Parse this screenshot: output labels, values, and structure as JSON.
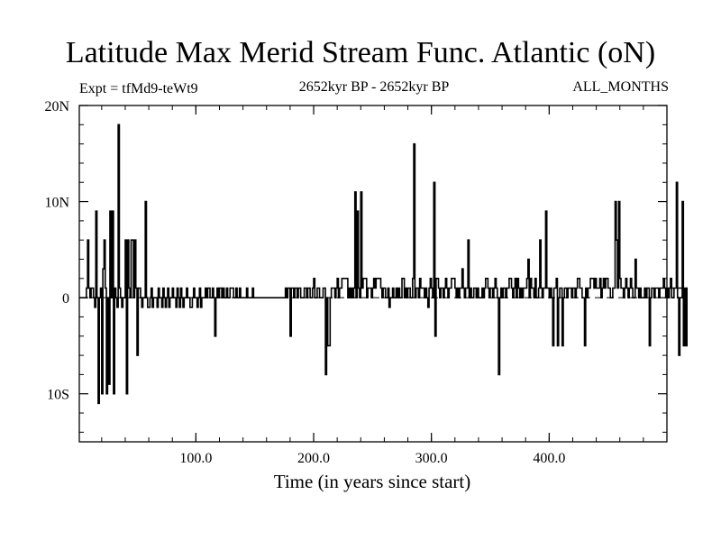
{
  "chart_data": {
    "type": "line",
    "title": "Latitude Max Merid Stream Func. Atlantic (oN)",
    "expt": "Expt = tfMd9-teWt9",
    "period": "2652kyr BP - 2652kyr BP",
    "months": "ALL_MONTHS",
    "xlabel": "Time (in years since start)",
    "ylabel": "",
    "xlim": [
      1,
      500
    ],
    "ylim": [
      -15,
      20
    ],
    "x_ticks": [
      {
        "value": 100,
        "label": "100.0"
      },
      {
        "value": 200,
        "label": "200.0"
      },
      {
        "value": 300,
        "label": "300.0"
      },
      {
        "value": 400,
        "label": "400.0"
      }
    ],
    "y_ticks": [
      {
        "value": 20,
        "label": "20N"
      },
      {
        "value": 10,
        "label": "10N"
      },
      {
        "value": 0,
        "label": "0"
      },
      {
        "value": -10,
        "label": "10S"
      }
    ],
    "reference_line": {
      "value": 0,
      "style": "dashed"
    },
    "grid": false,
    "series": [
      {
        "values": [
          0,
          0,
          0,
          0,
          0,
          0,
          1,
          6,
          1,
          0,
          1,
          1,
          0,
          -1,
          9,
          0,
          -11,
          0,
          1,
          -10,
          3,
          6,
          1,
          -10,
          0,
          -9,
          9,
          0,
          9,
          -10,
          1,
          0,
          -1,
          18,
          1,
          0,
          -1,
          0,
          0,
          6,
          -10,
          6,
          1,
          0,
          6,
          6,
          0,
          6,
          1,
          -6,
          1,
          1,
          0,
          -1,
          0,
          0,
          10,
          0,
          -1,
          -1,
          0,
          1,
          -1,
          0,
          0,
          0,
          -1,
          1,
          0,
          0,
          -1,
          1,
          0,
          -1,
          0,
          1,
          -1,
          0,
          0,
          1,
          0,
          0,
          -1,
          1,
          0,
          -1,
          1,
          0,
          -1,
          0,
          0,
          1,
          0,
          0,
          -1,
          -1,
          0,
          1,
          0,
          0,
          -1,
          0,
          1,
          -1,
          0,
          0,
          0,
          1,
          0,
          1,
          1,
          0,
          0,
          1,
          0,
          -4,
          0,
          1,
          0,
          1,
          1,
          0,
          1,
          0,
          0,
          1,
          0,
          0,
          1,
          1,
          1,
          0,
          0,
          1,
          0,
          0,
          1,
          0,
          0,
          0,
          0,
          0,
          1,
          0,
          0,
          0,
          0,
          1,
          0,
          0,
          0,
          0,
          0,
          0,
          0,
          0,
          0,
          0,
          0,
          0,
          0,
          0,
          0,
          0,
          0,
          0,
          0,
          0,
          0,
          0,
          0,
          0,
          0,
          0,
          0,
          1,
          0,
          1,
          1,
          -4,
          1,
          1,
          0,
          1,
          1,
          0,
          1,
          1,
          0,
          0,
          0,
          1,
          1,
          0,
          1,
          1,
          0,
          0,
          1,
          2,
          0,
          0,
          1,
          1,
          0,
          0,
          0,
          1,
          1,
          -8,
          0,
          -5,
          -5,
          0,
          1,
          1,
          1,
          0,
          1,
          2,
          0,
          1,
          1,
          2,
          2,
          2,
          2,
          2,
          0,
          1,
          0,
          1,
          0,
          1,
          11,
          0,
          9,
          1,
          0,
          11,
          1,
          2,
          2,
          2,
          0,
          1,
          1,
          1,
          0,
          1,
          2,
          1,
          2,
          2,
          2,
          2,
          1,
          0,
          1,
          1,
          0,
          0,
          1,
          -1,
          0,
          0,
          1,
          0,
          0,
          1,
          0,
          1,
          0,
          0,
          2,
          2,
          0,
          1,
          0,
          1,
          1,
          0,
          0,
          2,
          16,
          0,
          1,
          1,
          0,
          2,
          1,
          1,
          1,
          0,
          1,
          0,
          -1,
          1,
          2,
          1,
          0,
          12,
          -4,
          2,
          2,
          1,
          0,
          1,
          1,
          0,
          1,
          2,
          1,
          0,
          1,
          1,
          2,
          2,
          2,
          1,
          0,
          1,
          0,
          1,
          1,
          3,
          1,
          0,
          1,
          1,
          6,
          0,
          1,
          0,
          0,
          1,
          1,
          0,
          1,
          0,
          0,
          0,
          1,
          0,
          1,
          2,
          2,
          1,
          0,
          1,
          1,
          0,
          1,
          2,
          1,
          0,
          -8,
          0,
          1,
          0,
          1,
          1,
          0,
          1,
          1,
          2,
          2,
          1,
          0,
          1,
          2,
          0,
          2,
          1,
          0,
          1,
          0,
          1,
          1,
          1,
          2,
          4,
          0,
          2,
          1,
          1,
          0,
          2,
          0,
          0,
          1,
          6,
          1,
          0,
          1,
          1,
          9,
          1,
          1,
          0,
          1,
          0,
          -5,
          1,
          1,
          2,
          -5,
          0,
          1,
          1,
          -5,
          0,
          1,
          1,
          0,
          1,
          1,
          1,
          0,
          1,
          1,
          0,
          1,
          2,
          2,
          1,
          1,
          0,
          0,
          -5,
          1,
          0,
          1,
          1,
          2,
          2,
          2,
          1,
          2,
          1,
          1,
          1,
          2,
          0,
          1,
          2,
          1,
          2,
          2,
          1,
          1,
          0,
          0,
          1,
          1,
          10,
          6,
          1,
          10,
          2,
          1,
          1,
          0,
          1,
          2,
          1,
          0,
          1,
          2,
          1,
          0,
          0,
          4,
          1,
          1,
          0,
          1,
          0,
          0,
          0,
          1,
          0,
          1,
          1,
          -5,
          0,
          1,
          1,
          0,
          1,
          1,
          1,
          0,
          1,
          1,
          1,
          2,
          1,
          0,
          1,
          0,
          1,
          2,
          0,
          0,
          1,
          1,
          12,
          0,
          -6,
          0,
          0,
          10,
          -5,
          1,
          -5,
          1
        ]
      }
    ]
  }
}
